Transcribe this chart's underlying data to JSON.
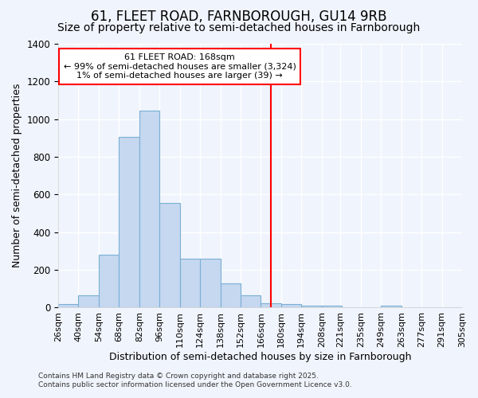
{
  "title_line1": "61, FLEET ROAD, FARNBOROUGH, GU14 9RB",
  "title_line2": "Size of property relative to semi-detached houses in Farnborough",
  "xlabel": "Distribution of semi-detached houses by size in Farnborough",
  "ylabel": "Number of semi-detached properties",
  "annotation_title": "61 FLEET ROAD: 168sqm",
  "annotation_line2": "← 99% of semi-detached houses are smaller (3,324)",
  "annotation_line3": "1% of semi-detached houses are larger (39) →",
  "vline_x": 166,
  "bins": [
    26,
    40,
    54,
    68,
    82,
    96,
    110,
    124,
    138,
    152,
    166,
    180,
    194,
    208,
    221,
    235,
    249,
    263,
    277,
    291,
    305
  ],
  "bin_labels": [
    "26sqm",
    "40sqm",
    "54sqm",
    "68sqm",
    "82sqm",
    "96sqm",
    "110sqm",
    "124sqm",
    "138sqm",
    "152sqm",
    "166sqm",
    "180sqm",
    "194sqm",
    "208sqm",
    "221sqm",
    "235sqm",
    "249sqm",
    "263sqm",
    "277sqm",
    "291sqm",
    "305sqm"
  ],
  "counts": [
    20,
    65,
    280,
    905,
    1045,
    555,
    260,
    260,
    130,
    65,
    25,
    20,
    10,
    10,
    0,
    0,
    10,
    0,
    0,
    0,
    0
  ],
  "bar_color": "#c5d8f0",
  "bar_edge_color": "#7aafd4",
  "vline_color": "red",
  "background_color": "#f0f4fc",
  "grid_color": "white",
  "ylim": [
    0,
    1400
  ],
  "yticks": [
    0,
    200,
    400,
    600,
    800,
    1000,
    1200,
    1400
  ],
  "footer_line1": "Contains HM Land Registry data © Crown copyright and database right 2025.",
  "footer_line2": "Contains public sector information licensed under the Open Government Licence v3.0.",
  "title_fontsize": 12,
  "subtitle_fontsize": 10,
  "label_fontsize": 9,
  "tick_fontsize": 8.5
}
